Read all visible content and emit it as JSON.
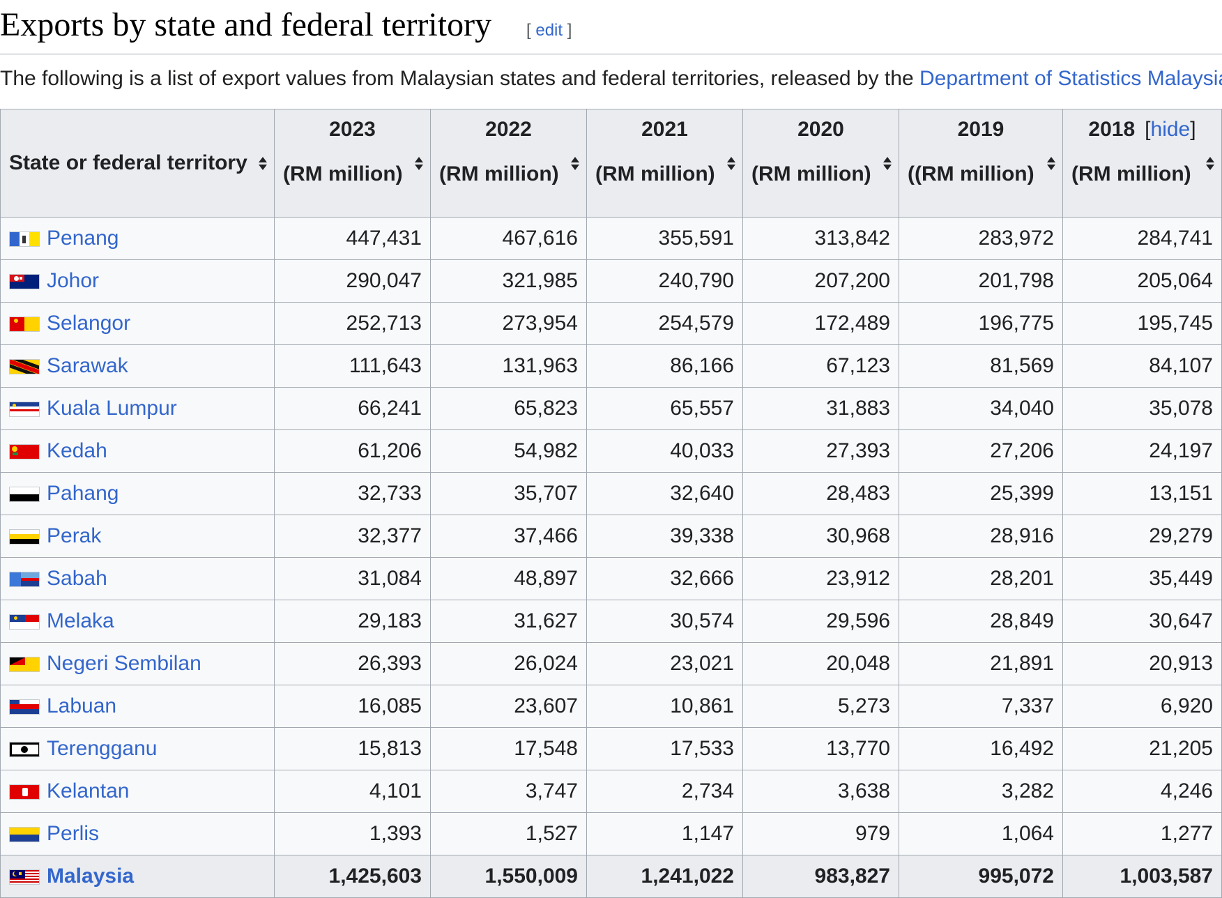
{
  "heading": {
    "title": "Exports by state and federal territory",
    "edit_open": "[ ",
    "edit_label": "edit",
    "edit_close": " ]"
  },
  "intro": {
    "text": "The following is a list of export values from Malaysian states and federal territories, released by the ",
    "link": "Department of Statistics Malaysia"
  },
  "table": {
    "state_header": "State or federal territory",
    "columns": [
      {
        "year": "2023",
        "unit": "(RM million)"
      },
      {
        "year": "2022",
        "unit": "(RM million)"
      },
      {
        "year": "2021",
        "unit": "(RM million)"
      },
      {
        "year": "2020",
        "unit": "(RM million)"
      },
      {
        "year": "2019",
        "unit": "((RM million)"
      },
      {
        "year": "2018",
        "unit": "(RM million)"
      }
    ],
    "hide_open": "[",
    "hide_label": "hide",
    "hide_close": "]",
    "rows": [
      {
        "name": "Penang",
        "flag": "penang-flag-icon",
        "values": [
          "447,431",
          "467,616",
          "355,591",
          "313,842",
          "283,972",
          "284,741"
        ]
      },
      {
        "name": "Johor",
        "flag": "johor-flag-icon",
        "values": [
          "290,047",
          "321,985",
          "240,790",
          "207,200",
          "201,798",
          "205,064"
        ]
      },
      {
        "name": "Selangor",
        "flag": "selangor-flag-icon",
        "values": [
          "252,713",
          "273,954",
          "254,579",
          "172,489",
          "196,775",
          "195,745"
        ]
      },
      {
        "name": "Sarawak",
        "flag": "sarawak-flag-icon",
        "values": [
          "111,643",
          "131,963",
          "86,166",
          "67,123",
          "81,569",
          "84,107"
        ]
      },
      {
        "name": "Kuala Lumpur",
        "flag": "kuala-lumpur-flag-icon",
        "values": [
          "66,241",
          "65,823",
          "65,557",
          "31,883",
          "34,040",
          "35,078"
        ]
      },
      {
        "name": "Kedah",
        "flag": "kedah-flag-icon",
        "values": [
          "61,206",
          "54,982",
          "40,033",
          "27,393",
          "27,206",
          "24,197"
        ]
      },
      {
        "name": "Pahang",
        "flag": "pahang-flag-icon",
        "values": [
          "32,733",
          "35,707",
          "32,640",
          "28,483",
          "25,399",
          "13,151"
        ]
      },
      {
        "name": "Perak",
        "flag": "perak-flag-icon",
        "values": [
          "32,377",
          "37,466",
          "39,338",
          "30,968",
          "28,916",
          "29,279"
        ]
      },
      {
        "name": "Sabah",
        "flag": "sabah-flag-icon",
        "values": [
          "31,084",
          "48,897",
          "32,666",
          "23,912",
          "28,201",
          "35,449"
        ]
      },
      {
        "name": "Melaka",
        "flag": "melaka-flag-icon",
        "values": [
          "29,183",
          "31,627",
          "30,574",
          "29,596",
          "28,849",
          "30,647"
        ]
      },
      {
        "name": "Negeri Sembilan",
        "flag": "negeri-sembilan-flag-icon",
        "values": [
          "26,393",
          "26,024",
          "23,021",
          "20,048",
          "21,891",
          "20,913"
        ]
      },
      {
        "name": "Labuan",
        "flag": "labuan-flag-icon",
        "values": [
          "16,085",
          "23,607",
          "10,861",
          "5,273",
          "7,337",
          "6,920"
        ]
      },
      {
        "name": "Terengganu",
        "flag": "terengganu-flag-icon",
        "values": [
          "15,813",
          "17,548",
          "17,533",
          "13,770",
          "16,492",
          "21,205"
        ]
      },
      {
        "name": "Kelantan",
        "flag": "kelantan-flag-icon",
        "values": [
          "4,101",
          "3,747",
          "2,734",
          "3,638",
          "3,282",
          "4,246"
        ]
      },
      {
        "name": "Perlis",
        "flag": "perlis-flag-icon",
        "values": [
          "1,393",
          "1,527",
          "1,147",
          "979",
          "1,064",
          "1,277"
        ]
      }
    ],
    "total": {
      "name": "Malaysia",
      "flag": "malaysia-flag-icon",
      "values": [
        "1,425,603",
        "1,550,009",
        "1,241,022",
        "983,827",
        "995,072",
        "1,003,587"
      ]
    }
  },
  "colors": {
    "link": "#3366cc",
    "header_bg": "#eaecf0",
    "table_bg": "#f8f9fa",
    "border": "#a2a9b1"
  }
}
